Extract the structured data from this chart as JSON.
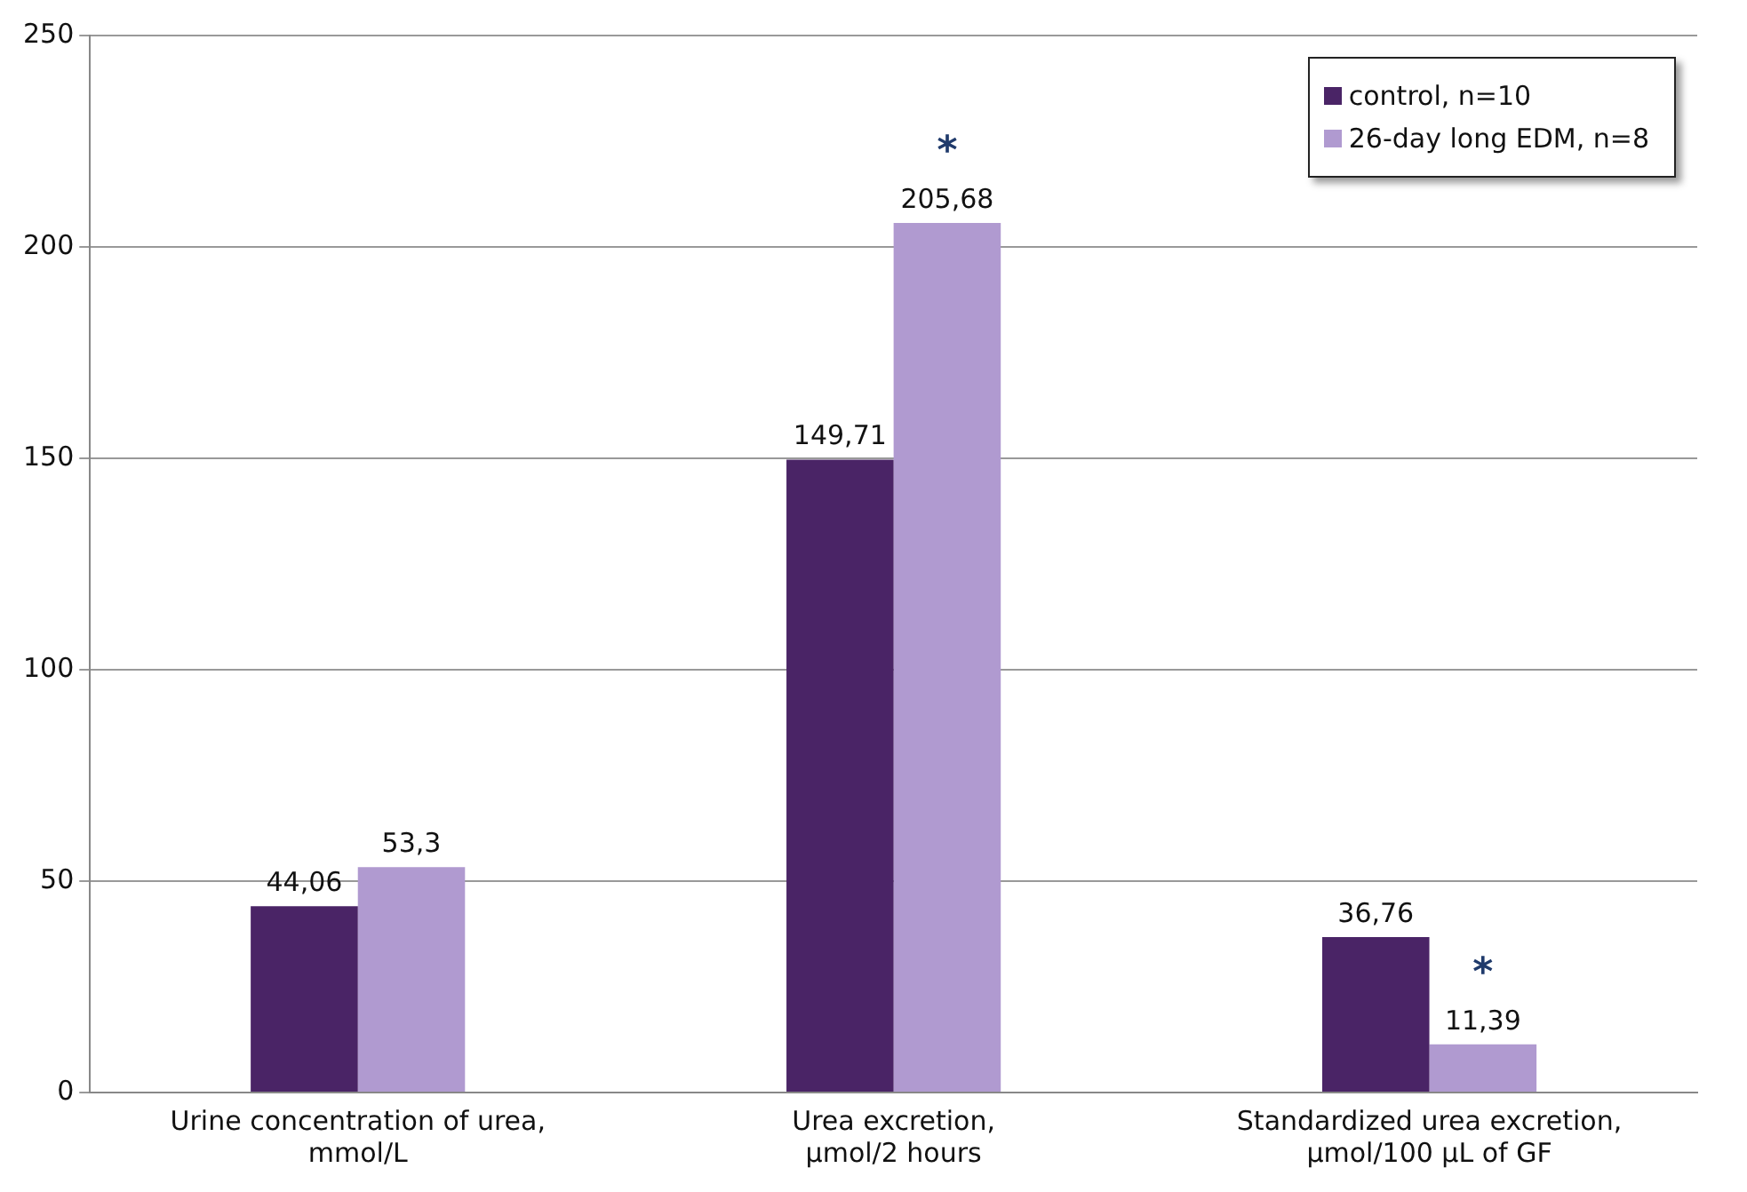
{
  "chart_data": {
    "type": "bar",
    "categories": [
      "Urine concentration of urea, mmol/L",
      "Urea excretion, µmol/2 hours",
      "Standardized urea excretion, µmol/100 µL of GF"
    ],
    "series": [
      {
        "name": "control, n=10",
        "color": "#4a2466",
        "values": [
          44.06,
          149.71,
          36.76
        ],
        "value_labels": [
          "44,06",
          "149,71",
          "36,76"
        ]
      },
      {
        "name": "26-day long EDM, n=8",
        "color": "#b09ad0",
        "values": [
          53.3,
          205.68,
          11.39
        ],
        "value_labels": [
          "53,3",
          "205,68",
          "11,39"
        ]
      }
    ],
    "annotations": [
      {
        "text": "*",
        "x": "Urea excretion, µmol/2 hours",
        "y": 205.68
      },
      {
        "text": "*",
        "x": "Standardized urea excretion, µmol/100 µL of GF",
        "y": 11.39
      }
    ],
    "ylim": [
      0,
      250
    ],
    "yticks": [
      0,
      50,
      100,
      150,
      200,
      250
    ],
    "grid": "y",
    "legend": "top right"
  }
}
